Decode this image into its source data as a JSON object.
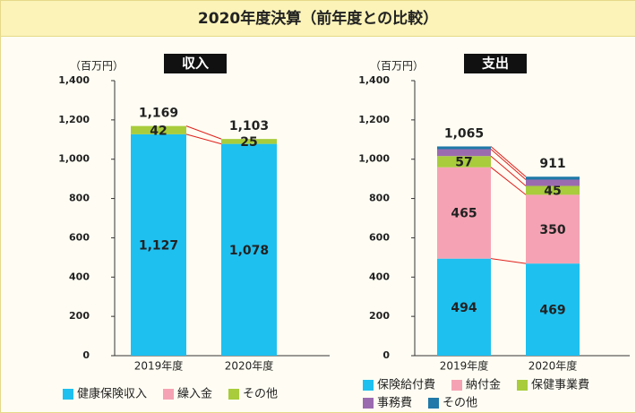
{
  "title": "2020年度決算（前年度との比較）",
  "chart_data": [
    {
      "type": "bar",
      "stacked": true,
      "title": "収入",
      "y_label": "（百万円）",
      "categories": [
        "2019年度",
        "2020年度"
      ],
      "series": [
        {
          "name": "健康保険収入",
          "color": "#1ec0f0",
          "values": [
            1127,
            1078
          ],
          "value_labels": [
            "1,127",
            "1,078"
          ],
          "show_labels": true
        },
        {
          "name": "繰入金",
          "color": "#f5a3b4",
          "values": [
            0,
            0
          ],
          "show_labels": false
        },
        {
          "name": "その他",
          "color": "#a8cc3c",
          "values": [
            42,
            25
          ],
          "show_labels": true
        }
      ],
      "totals": [
        {
          "value": 1169,
          "label": "1,169"
        },
        {
          "value": 1103,
          "label": "1,103"
        }
      ],
      "ylim": [
        0,
        1400
      ],
      "yticks": [
        0,
        200,
        400,
        600,
        800,
        {
          "value": 1000,
          "label": "1,000"
        },
        {
          "value": 1200,
          "label": "1,200"
        },
        {
          "value": 1400,
          "label": "1,400"
        }
      ],
      "grid": false
    },
    {
      "type": "bar",
      "stacked": true,
      "title": "支出",
      "y_label": "（百万円）",
      "categories": [
        "2019年度",
        "2020年度"
      ],
      "series": [
        {
          "name": "保険給付費",
          "color": "#1ec0f0",
          "values": [
            494,
            469
          ],
          "show_labels": true
        },
        {
          "name": "納付金",
          "color": "#f5a3b4",
          "values": [
            465,
            350
          ],
          "show_labels": true
        },
        {
          "name": "保健事業費",
          "color": "#a8cc3c",
          "values": [
            57,
            45
          ],
          "show_labels": true
        },
        {
          "name": "事務費",
          "color": "#9b6bb0",
          "values": [
            35,
            32
          ],
          "show_labels": false
        },
        {
          "name": "その他",
          "color": "#2079a8",
          "values": [
            14,
            15
          ],
          "show_labels": false
        }
      ],
      "totals": [
        {
          "value": 1065,
          "label": "1,065"
        },
        {
          "value": 911,
          "label": "911"
        }
      ],
      "ylim": [
        0,
        1400
      ],
      "yticks": [
        0,
        200,
        400,
        600,
        800,
        {
          "value": 1000,
          "label": "1,000"
        },
        {
          "value": 1200,
          "label": "1,200"
        },
        {
          "value": 1400,
          "label": "1,400"
        }
      ],
      "grid": false
    }
  ]
}
